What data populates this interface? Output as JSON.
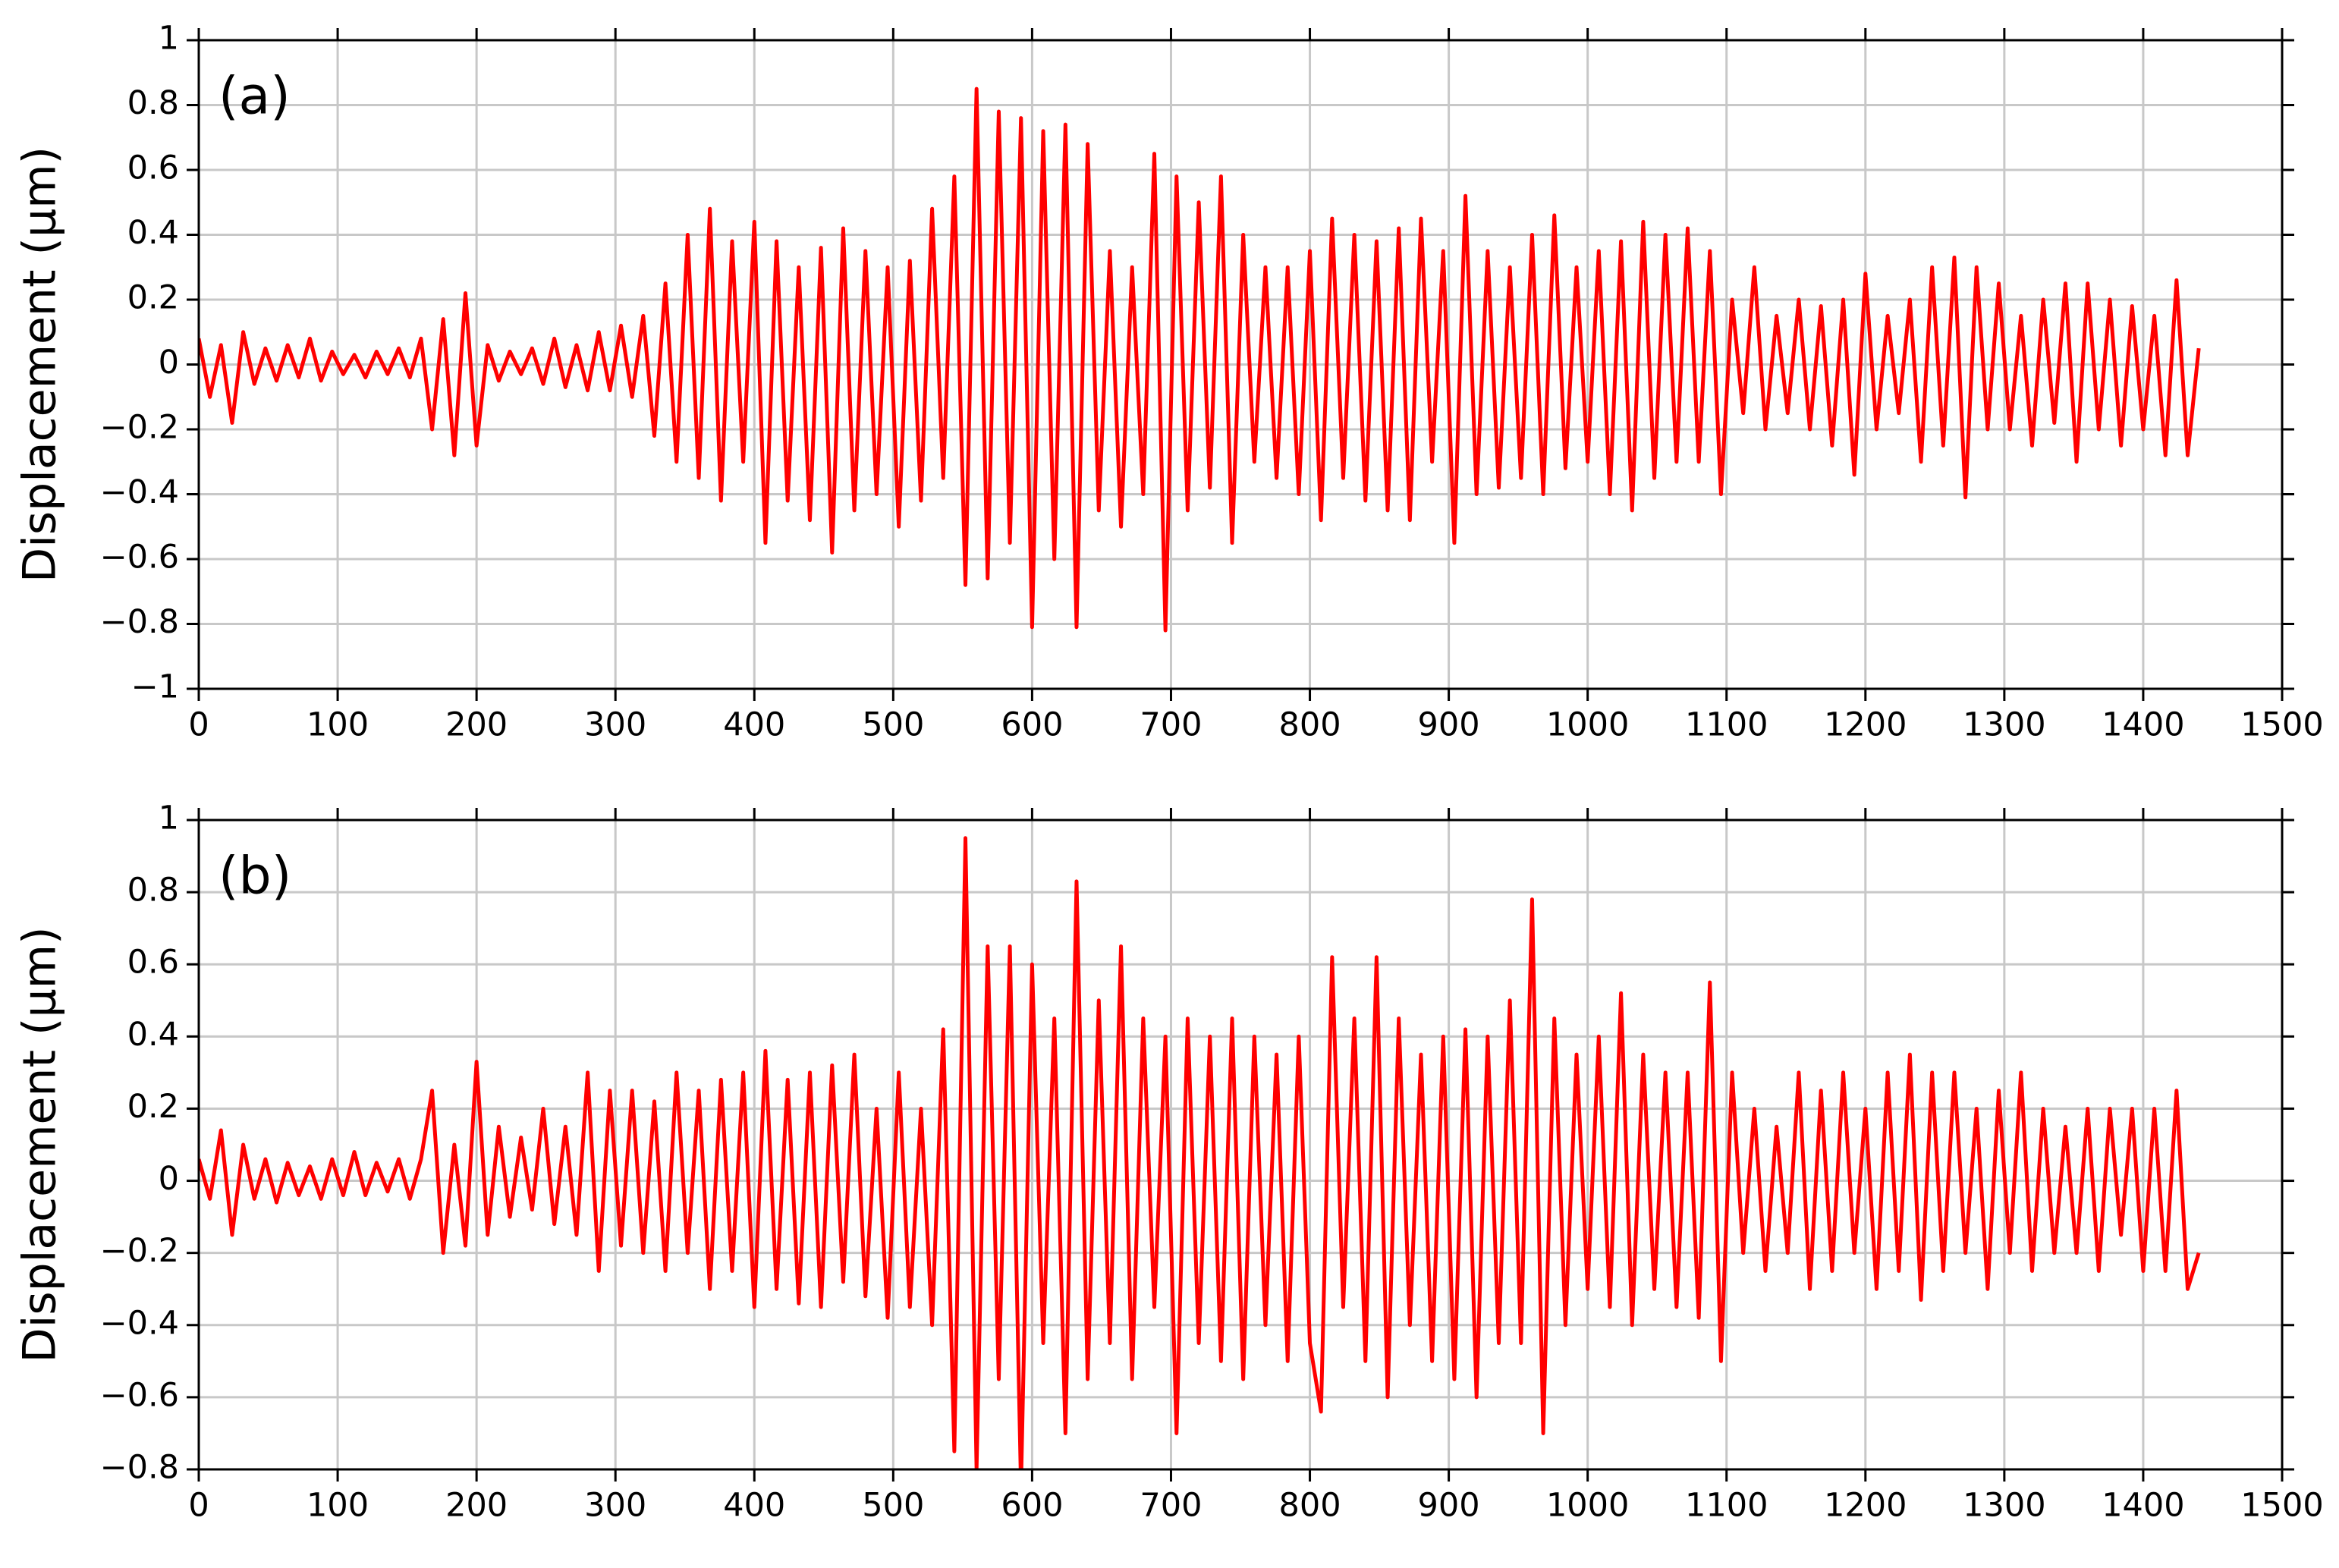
{
  "chart_data": [
    {
      "type": "line",
      "annotation": "(a)",
      "y_label": "Displacement (µm)",
      "color": "#ff0000",
      "grid": true,
      "xlim": [
        0,
        1500
      ],
      "xticks": [
        0,
        100,
        200,
        300,
        400,
        500,
        600,
        700,
        800,
        900,
        1000,
        1100,
        1200,
        1300,
        1400,
        1500
      ],
      "ylim": [
        -1,
        1
      ],
      "yticks": [
        {
          "value": -1,
          "label": "−1"
        },
        {
          "value": -0.8,
          "label": "−0.8"
        },
        {
          "value": -0.6,
          "label": "−0.6"
        },
        {
          "value": -0.4,
          "label": "−0.4"
        },
        {
          "value": -0.2,
          "label": "−0.2"
        },
        0,
        0.2,
        0.4,
        0.6,
        0.8,
        1
      ],
      "x": [
        0,
        8,
        16,
        24,
        32,
        40,
        48,
        56,
        64,
        72,
        80,
        88,
        96,
        104,
        112,
        120,
        128,
        136,
        144,
        152,
        160,
        168,
        176,
        184,
        192,
        200,
        208,
        216,
        224,
        232,
        240,
        248,
        256,
        264,
        272,
        280,
        288,
        296,
        304,
        312,
        320,
        328,
        336,
        344,
        352,
        360,
        368,
        376,
        384,
        392,
        400,
        408,
        416,
        424,
        432,
        440,
        448,
        456,
        464,
        472,
        480,
        488,
        496,
        504,
        512,
        520,
        528,
        536,
        544,
        552,
        560,
        568,
        576,
        584,
        592,
        600,
        608,
        616,
        624,
        632,
        640,
        648,
        656,
        664,
        672,
        680,
        688,
        696,
        704,
        712,
        720,
        728,
        736,
        744,
        752,
        760,
        768,
        776,
        784,
        792,
        800,
        808,
        816,
        824,
        832,
        840,
        848,
        856,
        864,
        872,
        880,
        888,
        896,
        904,
        912,
        920,
        928,
        936,
        944,
        952,
        960,
        968,
        976,
        984,
        992,
        1000,
        1008,
        1016,
        1024,
        1032,
        1040,
        1048,
        1056,
        1064,
        1072,
        1080,
        1088,
        1096,
        1104,
        1112,
        1120,
        1128,
        1136,
        1144,
        1152,
        1160,
        1168,
        1176,
        1184,
        1192,
        1200,
        1208,
        1216,
        1224,
        1232,
        1240,
        1248,
        1256,
        1264,
        1272,
        1280,
        1288,
        1296,
        1304,
        1312,
        1320,
        1328,
        1336,
        1344,
        1352,
        1360,
        1368,
        1376,
        1384,
        1392,
        1400,
        1408,
        1416,
        1424,
        1432,
        1440
      ],
      "values": [
        0.08,
        -0.1,
        0.06,
        -0.18,
        0.1,
        -0.06,
        0.05,
        -0.05,
        0.06,
        -0.04,
        0.08,
        -0.05,
        0.04,
        -0.03,
        0.03,
        -0.04,
        0.04,
        -0.03,
        0.05,
        -0.04,
        0.08,
        -0.2,
        0.14,
        -0.28,
        0.22,
        -0.25,
        0.06,
        -0.05,
        0.04,
        -0.03,
        0.05,
        -0.06,
        0.08,
        -0.07,
        0.06,
        -0.08,
        0.1,
        -0.08,
        0.12,
        -0.1,
        0.15,
        -0.22,
        0.25,
        -0.3,
        0.4,
        -0.35,
        0.48,
        -0.42,
        0.38,
        -0.3,
        0.44,
        -0.55,
        0.38,
        -0.42,
        0.3,
        -0.48,
        0.36,
        -0.58,
        0.42,
        -0.45,
        0.35,
        -0.4,
        0.3,
        -0.5,
        0.32,
        -0.42,
        0.48,
        -0.35,
        0.58,
        -0.68,
        0.85,
        -0.66,
        0.78,
        -0.55,
        0.76,
        -0.81,
        0.72,
        -0.6,
        0.74,
        -0.81,
        0.68,
        -0.45,
        0.35,
        -0.5,
        0.3,
        -0.4,
        0.65,
        -0.82,
        0.58,
        -0.45,
        0.5,
        -0.38,
        0.58,
        -0.55,
        0.4,
        -0.3,
        0.3,
        -0.35,
        0.3,
        -0.4,
        0.35,
        -0.48,
        0.45,
        -0.35,
        0.4,
        -0.42,
        0.38,
        -0.45,
        0.42,
        -0.48,
        0.45,
        -0.3,
        0.35,
        -0.55,
        0.52,
        -0.4,
        0.35,
        -0.38,
        0.3,
        -0.35,
        0.4,
        -0.4,
        0.46,
        -0.32,
        0.3,
        -0.3,
        0.35,
        -0.4,
        0.38,
        -0.45,
        0.44,
        -0.35,
        0.4,
        -0.3,
        0.42,
        -0.3,
        0.35,
        -0.4,
        0.2,
        -0.15,
        0.3,
        -0.2,
        0.15,
        -0.15,
        0.2,
        -0.2,
        0.18,
        -0.25,
        0.2,
        -0.34,
        0.28,
        -0.2,
        0.15,
        -0.15,
        0.2,
        -0.3,
        0.3,
        -0.25,
        0.33,
        -0.41,
        0.3,
        -0.2,
        0.25,
        -0.2,
        0.15,
        -0.25,
        0.2,
        -0.18,
        0.25,
        -0.3,
        0.25,
        -0.2,
        0.2,
        -0.25,
        0.18,
        -0.2,
        0.15,
        -0.28,
        0.26,
        -0.28,
        0.05
      ]
    },
    {
      "type": "line",
      "annotation": "(b)",
      "y_label": "Displacement (µm)",
      "color": "#ff0000",
      "grid": true,
      "xlim": [
        0,
        1500
      ],
      "xticks": [
        0,
        100,
        200,
        300,
        400,
        500,
        600,
        700,
        800,
        900,
        1000,
        1100,
        1200,
        1300,
        1400,
        1500
      ],
      "ylim": [
        -0.8,
        1
      ],
      "yticks": [
        {
          "value": -0.8,
          "label": "−0.8"
        },
        {
          "value": -0.6,
          "label": "−0.6"
        },
        {
          "value": -0.4,
          "label": "−0.4"
        },
        {
          "value": -0.2,
          "label": "−0.2"
        },
        0,
        0.2,
        0.4,
        0.6,
        0.8,
        1
      ],
      "x": [
        0,
        8,
        16,
        24,
        32,
        40,
        48,
        56,
        64,
        72,
        80,
        88,
        96,
        104,
        112,
        120,
        128,
        136,
        144,
        152,
        160,
        168,
        176,
        184,
        192,
        200,
        208,
        216,
        224,
        232,
        240,
        248,
        256,
        264,
        272,
        280,
        288,
        296,
        304,
        312,
        320,
        328,
        336,
        344,
        352,
        360,
        368,
        376,
        384,
        392,
        400,
        408,
        416,
        424,
        432,
        440,
        448,
        456,
        464,
        472,
        480,
        488,
        496,
        504,
        512,
        520,
        528,
        536,
        544,
        552,
        560,
        568,
        576,
        584,
        592,
        600,
        608,
        616,
        624,
        632,
        640,
        648,
        656,
        664,
        672,
        680,
        688,
        696,
        704,
        712,
        720,
        728,
        736,
        744,
        752,
        760,
        768,
        776,
        784,
        792,
        800,
        808,
        816,
        824,
        832,
        840,
        848,
        856,
        864,
        872,
        880,
        888,
        896,
        904,
        912,
        920,
        928,
        936,
        944,
        952,
        960,
        968,
        976,
        984,
        992,
        1000,
        1008,
        1016,
        1024,
        1032,
        1040,
        1048,
        1056,
        1064,
        1072,
        1080,
        1088,
        1096,
        1104,
        1112,
        1120,
        1128,
        1136,
        1144,
        1152,
        1160,
        1168,
        1176,
        1184,
        1192,
        1200,
        1208,
        1216,
        1224,
        1232,
        1240,
        1248,
        1256,
        1264,
        1272,
        1280,
        1288,
        1296,
        1304,
        1312,
        1320,
        1328,
        1336,
        1344,
        1352,
        1360,
        1368,
        1376,
        1384,
        1392,
        1400,
        1408,
        1416,
        1424,
        1432,
        1440
      ],
      "values": [
        0.06,
        -0.05,
        0.14,
        -0.15,
        0.1,
        -0.05,
        0.06,
        -0.06,
        0.05,
        -0.04,
        0.04,
        -0.05,
        0.06,
        -0.04,
        0.08,
        -0.04,
        0.05,
        -0.03,
        0.06,
        -0.05,
        0.06,
        0.25,
        -0.2,
        0.1,
        -0.18,
        0.33,
        -0.15,
        0.15,
        -0.1,
        0.12,
        -0.08,
        0.2,
        -0.12,
        0.15,
        -0.15,
        0.3,
        -0.25,
        0.25,
        -0.18,
        0.25,
        -0.2,
        0.22,
        -0.25,
        0.3,
        -0.2,
        0.25,
        -0.3,
        0.28,
        -0.25,
        0.3,
        -0.35,
        0.36,
        -0.3,
        0.28,
        -0.34,
        0.3,
        -0.35,
        0.32,
        -0.28,
        0.35,
        -0.32,
        0.2,
        -0.38,
        0.3,
        -0.35,
        0.2,
        -0.4,
        0.42,
        -0.75,
        0.95,
        -0.8,
        0.65,
        -0.55,
        0.65,
        -0.85,
        0.6,
        -0.45,
        0.45,
        -0.7,
        0.83,
        -0.55,
        0.5,
        -0.45,
        0.65,
        -0.55,
        0.45,
        -0.35,
        0.4,
        -0.7,
        0.45,
        -0.45,
        0.4,
        -0.5,
        0.45,
        -0.55,
        0.4,
        -0.4,
        0.35,
        -0.5,
        0.4,
        -0.45,
        -0.64,
        0.62,
        -0.35,
        0.45,
        -0.5,
        0.62,
        -0.6,
        0.45,
        -0.4,
        0.35,
        -0.5,
        0.4,
        -0.55,
        0.42,
        -0.6,
        0.4,
        -0.45,
        0.5,
        -0.45,
        0.78,
        -0.7,
        0.45,
        -0.4,
        0.35,
        -0.3,
        0.4,
        -0.35,
        0.52,
        -0.4,
        0.35,
        -0.3,
        0.3,
        -0.35,
        0.3,
        -0.38,
        0.55,
        -0.5,
        0.3,
        -0.2,
        0.2,
        -0.25,
        0.15,
        -0.2,
        0.3,
        -0.3,
        0.25,
        -0.25,
        0.3,
        -0.2,
        0.2,
        -0.3,
        0.3,
        -0.25,
        0.35,
        -0.33,
        0.3,
        -0.25,
        0.3,
        -0.2,
        0.2,
        -0.3,
        0.25,
        -0.2,
        0.3,
        -0.25,
        0.2,
        -0.2,
        0.15,
        -0.2,
        0.2,
        -0.25,
        0.2,
        -0.15,
        0.2,
        -0.25,
        0.2,
        -0.25,
        0.25,
        -0.3,
        -0.2
      ]
    }
  ]
}
